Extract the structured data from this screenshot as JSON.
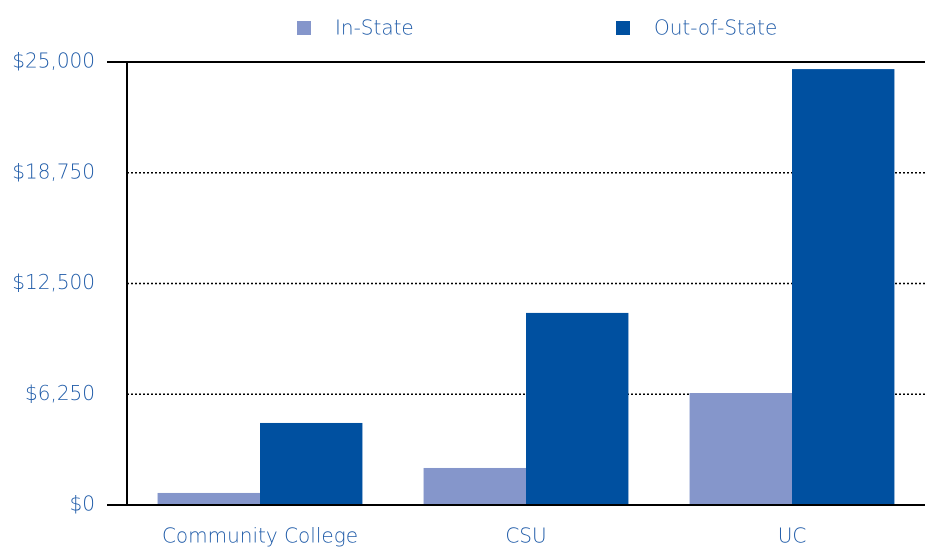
{
  "chart_data": {
    "type": "bar",
    "categories": [
      "Community College",
      "CSU",
      "UC"
    ],
    "series": [
      {
        "name": "In-State",
        "color": "#8596cb",
        "values": [
          680,
          2090,
          6320
        ]
      },
      {
        "name": "Out-of-State",
        "color": "#0050a0",
        "values": [
          4630,
          10840,
          24600
        ]
      }
    ],
    "ylim": [
      0,
      25000
    ],
    "yticks": [
      {
        "value": 0,
        "label": "$0"
      },
      {
        "value": 6250,
        "label": "$6,250"
      },
      {
        "value": 12500,
        "label": "$12,500"
      },
      {
        "value": 18750,
        "label": "$18,750"
      },
      {
        "value": 25000,
        "label": "$25,000"
      }
    ],
    "grid": true,
    "legend": "top"
  }
}
